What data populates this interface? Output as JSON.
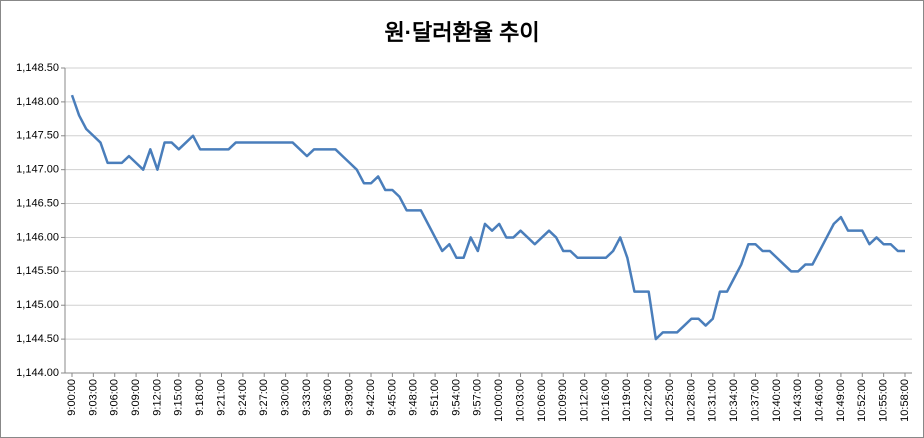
{
  "chart_data": {
    "type": "line",
    "title": "원·달러환율 추이",
    "categories": [
      "9:00:00",
      null,
      null,
      "9:03:00",
      null,
      null,
      "9:06:00",
      null,
      null,
      "9:09:00",
      null,
      null,
      "9:12:00",
      null,
      null,
      "9:15:00",
      null,
      null,
      "9:18:00",
      null,
      null,
      "9:21:00",
      null,
      null,
      "9:24:00",
      null,
      null,
      "9:27:00",
      null,
      null,
      "9:30:00",
      null,
      null,
      "9:33:00",
      null,
      null,
      "9:36:00",
      null,
      null,
      "9:39:00",
      null,
      null,
      "9:42:00",
      null,
      null,
      "9:45:00",
      null,
      null,
      "9:48:00",
      null,
      null,
      "9:51:00",
      null,
      null,
      "9:54:00",
      null,
      null,
      "9:57:00",
      null,
      null,
      "10:00:00",
      null,
      null,
      "10:03:00",
      null,
      null,
      "10:06:00",
      null,
      null,
      "10:09:00",
      null,
      null,
      "10:12:00",
      null,
      null,
      "10:16:00",
      null,
      null,
      "10:19:00",
      null,
      null,
      "10:22:00",
      null,
      null,
      "10:25:00",
      null,
      null,
      "10:28:00",
      null,
      null,
      "10:31:00",
      null,
      null,
      "10:34:00",
      null,
      null,
      "10:37:00",
      null,
      null,
      "10:40:00",
      null,
      null,
      "10:43:00",
      null,
      null,
      "10:46:00",
      null,
      null,
      "10:49:00",
      null,
      null,
      "10:52:00",
      null,
      null,
      "10:55:00",
      null,
      null,
      "10:58:00"
    ],
    "series": [
      {
        "name": "원·달러환율",
        "color": "#4a7ebb",
        "values": [
          1148.1,
          1147.8,
          1147.6,
          1147.5,
          1147.4,
          1147.1,
          1147.1,
          1147.1,
          1147.2,
          1147.1,
          1147.0,
          1147.3,
          1147.0,
          1147.4,
          1147.4,
          1147.3,
          1147.4,
          1147.5,
          1147.3,
          1147.3,
          1147.3,
          1147.3,
          1147.3,
          1147.4,
          1147.4,
          1147.4,
          1147.4,
          1147.4,
          1147.4,
          1147.4,
          1147.4,
          1147.4,
          1147.3,
          1147.2,
          1147.3,
          1147.3,
          1147.3,
          1147.3,
          1147.2,
          1147.1,
          1147.0,
          1146.8,
          1146.8,
          1146.9,
          1146.7,
          1146.7,
          1146.6,
          1146.4,
          1146.4,
          1146.4,
          1146.2,
          1146.0,
          1145.8,
          1145.9,
          1145.7,
          1145.7,
          1146.0,
          1145.8,
          1146.2,
          1146.1,
          1146.2,
          1146.0,
          1146.0,
          1146.1,
          1146.0,
          1145.9,
          1146.0,
          1146.1,
          1146.0,
          1145.8,
          1145.8,
          1145.7,
          1145.7,
          1145.7,
          1145.7,
          1145.7,
          1145.8,
          1146.0,
          1145.7,
          1145.2,
          1145.2,
          1145.2,
          1144.5,
          1144.6,
          1144.6,
          1144.6,
          1144.7,
          1144.8,
          1144.8,
          1144.7,
          1144.8,
          1145.2,
          1145.2,
          1145.4,
          1145.6,
          1145.9,
          1145.9,
          1145.8,
          1145.8,
          1145.7,
          1145.6,
          1145.5,
          1145.5,
          1145.6,
          1145.6,
          1145.8,
          1146.0,
          1146.2,
          1146.3,
          1146.1,
          1146.1,
          1146.1,
          1145.9,
          1146.0,
          1145.9,
          1145.9,
          1145.8,
          1145.8
        ]
      }
    ],
    "ylim": [
      1144,
      1148.5
    ],
    "yticks": [
      {
        "value": 1144,
        "label": "1,144.00"
      },
      {
        "value": 1144.5,
        "label": "1,144.50"
      },
      {
        "value": 1145,
        "label": "1,145.00"
      },
      {
        "value": 1145.5,
        "label": "1,145.50"
      },
      {
        "value": 1146,
        "label": "1,146.00"
      },
      {
        "value": 1146.5,
        "label": "1,146.50"
      },
      {
        "value": 1147,
        "label": "1,147.00"
      },
      {
        "value": 1147.5,
        "label": "1,147.50"
      },
      {
        "value": 1148,
        "label": "1,148.00"
      },
      {
        "value": 1148.5,
        "label": "1,148.50"
      }
    ],
    "grid": true
  }
}
